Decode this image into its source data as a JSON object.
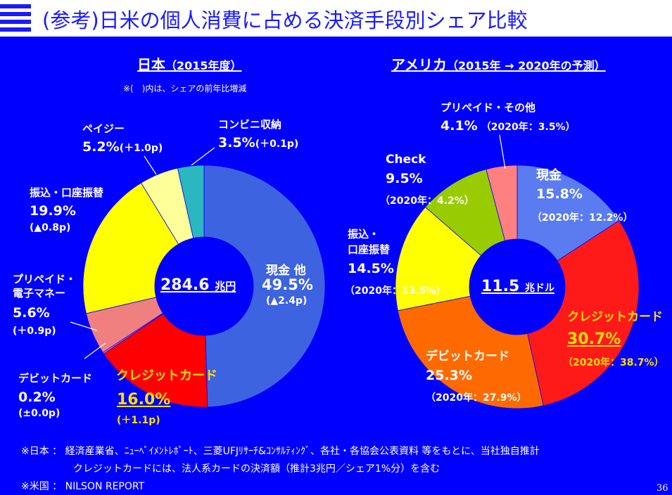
{
  "header": {
    "title": "(参考)日米の個人消費に占める決済手段別シェア比較"
  },
  "japan": {
    "heading": "日本",
    "heading_year": "（2015年度）",
    "note": "※(　)内は、シェアの前年比増減",
    "center_value": "284.6",
    "center_unit": "兆円"
  },
  "usa": {
    "heading": "アメリカ",
    "heading_year": "（2015年 → 2020年の予測）",
    "center_value": "11.5",
    "center_unit": "兆ドル"
  },
  "chart_data": [
    {
      "type": "pie",
      "title": "日本（2015年度）",
      "center_label": "284.6 兆円",
      "slices": [
        {
          "label": "現金 他",
          "value": 49.5,
          "change": "(▲2.4p)",
          "color": "#3d63e0"
        },
        {
          "label": "クレジットカード",
          "value": 16.0,
          "change": "(＋1.1p)",
          "color": "#ff0000"
        },
        {
          "label": "デビットカード",
          "value": 0.2,
          "change": "(±0.0p)",
          "color": "#ff8c80"
        },
        {
          "label": "プリペイド・電子マネー",
          "value": 5.6,
          "change": "(＋0.9p)",
          "color": "#f08080"
        },
        {
          "label": "振込・口座振替",
          "value": 19.9,
          "change": "(▲0.8p)",
          "color": "#ffff00"
        },
        {
          "label": "ペイジー",
          "value": 5.2,
          "change": "(＋1.0p)",
          "color": "#ffff99"
        },
        {
          "label": "コンビニ収納",
          "value": 3.5,
          "change": "(＋0.1p)",
          "color": "#2ab7c0"
        }
      ]
    },
    {
      "type": "pie",
      "title": "アメリカ（2015年 → 2020年の予測）",
      "center_label": "11.5 兆ドル",
      "slices": [
        {
          "label": "現金",
          "value": 15.8,
          "forecast_2020": "12.2",
          "color": "#5a7cf0"
        },
        {
          "label": "クレジットカード",
          "value": 30.7,
          "forecast_2020": "38.7",
          "color": "#ff1a1a"
        },
        {
          "label": "デビットカード",
          "value": 25.3,
          "forecast_2020": "27.9",
          "color": "#ff6a00"
        },
        {
          "label": "振込・口座振替",
          "value": 14.5,
          "forecast_2020": "13.5",
          "color": "#ffff00"
        },
        {
          "label": "Check",
          "value": 9.5,
          "forecast_2020": "4.2",
          "color": "#99cc00"
        },
        {
          "label": "プリペイド・その他",
          "value": 4.1,
          "forecast_2020": "3.5",
          "color": "#ff8080"
        }
      ]
    }
  ],
  "labels": {
    "jp_cash": "現金 他",
    "jp_cash_pct": "49.5%",
    "jp_cash_chg": "(▲2.4p)",
    "jp_credit": "クレジットカード",
    "jp_credit_pct": "16.0%",
    "jp_credit_chg": "(＋1.1p)",
    "jp_debit": "デビットカード",
    "jp_debit_pct": "0.2%",
    "jp_debit_chg": "(±0.0p)",
    "jp_prepaid1": "プリペイド・",
    "jp_prepaid2": "電子マネー",
    "jp_prepaid_pct": "5.6%",
    "jp_prepaid_chg": "(＋0.9p)",
    "jp_transfer": "振込・口座振替",
    "jp_transfer_pct": "19.9%",
    "jp_transfer_chg": "(▲0.8p)",
    "jp_payeasy": "ペイジー",
    "jp_payeasy_pct": "5.2%",
    "jp_payeasy_chg": "(＋1.0p)",
    "jp_conv": "コンビニ収納",
    "jp_conv_pct": "3.5%",
    "jp_conv_chg": "(＋0.1p)",
    "us_prepaid": "プリペイド・その他",
    "us_prepaid_pct": "4.1%",
    "us_prepaid_2020": "（2020年：3.5%）",
    "us_check": "Check",
    "us_check_pct": "9.5%",
    "us_check_2020": "（2020年：4.2%）",
    "us_cash": "現金",
    "us_cash_pct": "15.8%",
    "us_cash_2020": "（2020年：12.2%）",
    "us_transfer1": "振込・",
    "us_transfer2": "口座振替",
    "us_transfer_pct": "14.5%",
    "us_transfer_2020": "（2020年：13.5%）",
    "us_credit": "クレジットカード",
    "us_credit_pct": "30.7%",
    "us_credit_2020": "（2020年：38.7%）",
    "us_debit": "デビットカード",
    "us_debit_pct": "25.3%",
    "us_debit_2020": "（2020年：27.9%）"
  },
  "footer": {
    "line1": "※日本 ： 経済産業省、ﾆｭｰﾍﾟｲﾒﾝﾄﾚﾎﾟｰﾄ、三菱UFJﾘｻｰﾁ&ｺﾝｻﾙﾃｨﾝｸﾞ、各社・各協会公表資料 等をもとに、当社独自推計",
    "line2": "クレジットカードには、法人系カードの決済額（推計3兆円／シェア1%分）を含む",
    "line3": "※米国 ： NILSON REPORT",
    "page_number": "36"
  }
}
